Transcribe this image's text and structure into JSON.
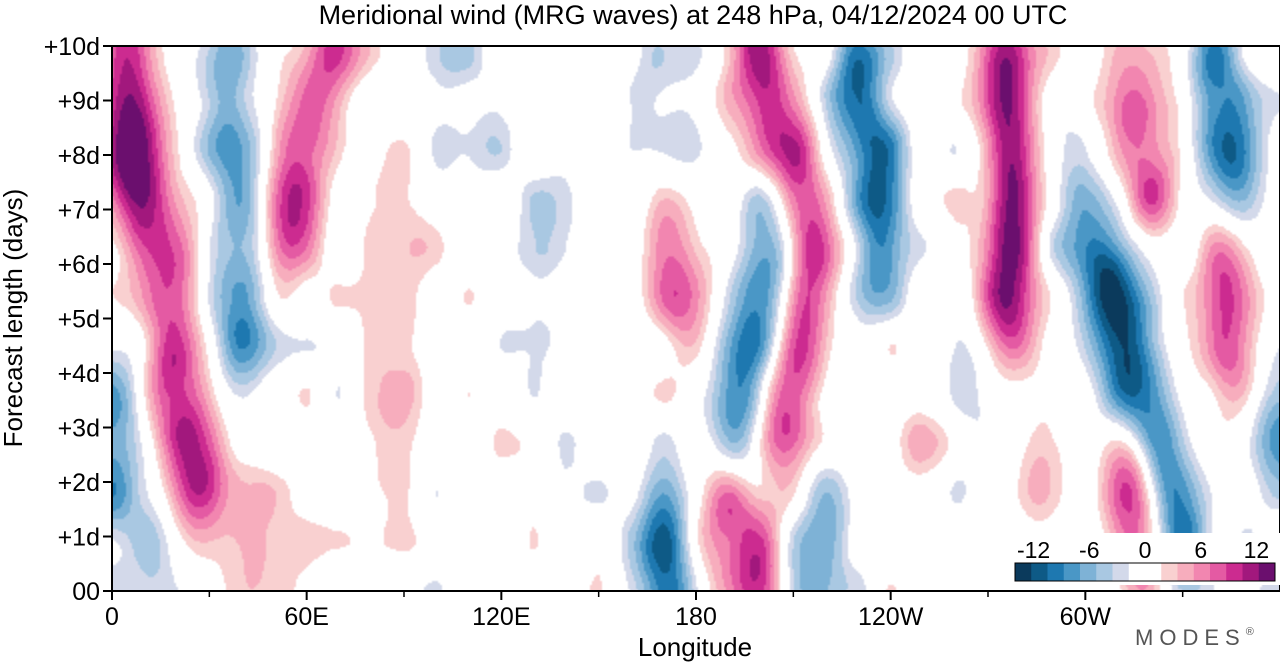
{
  "chart_data": {
    "type": "heatmap",
    "title": "Meridional wind (MRG waves) at  248 hPa,  04/12/2024  00 UTC",
    "xlabel": "Longitude",
    "ylabel": "Forecast length (days)",
    "x_ticks": [
      "0",
      "60E",
      "120E",
      "180",
      "120W",
      "60W"
    ],
    "x_tick_degrees": [
      0,
      60,
      120,
      180,
      240,
      300
    ],
    "xlim": [
      0,
      360
    ],
    "y_ticks": [
      "00",
      "+1d",
      "+2d",
      "+3d",
      "+4d",
      "+5d",
      "+6d",
      "+7d",
      "+8d",
      "+9d",
      "+10d"
    ],
    "ylim": [
      0,
      10
    ],
    "grid": false,
    "colorbar": {
      "labels": [
        "-12",
        "-6",
        "0",
        "6",
        "12"
      ],
      "label_values": [
        -12,
        -6,
        0,
        6,
        12
      ],
      "range": [
        -14,
        14
      ],
      "colors": [
        "#0b3a5c",
        "#0e5a86",
        "#1e78b0",
        "#4a97c6",
        "#7eb2d6",
        "#a9c8e2",
        "#d3d9ea",
        "#ffffff",
        "#ffffff",
        "#f9d0d0",
        "#f7adbd",
        "#f286b0",
        "#e45aa3",
        "#cc2b90",
        "#a2187d",
        "#6b0f6e"
      ]
    },
    "features": [
      {
        "name": "positive",
        "peak": 11,
        "lon": [
          4,
          3,
          3
        ],
        "day": [
          10,
          9,
          8
        ]
      },
      {
        "name": "negative",
        "peak": -7,
        "lon": [
          0,
          0
        ],
        "day": [
          3.2,
          2
        ]
      },
      {
        "name": "positive",
        "peak": 8,
        "lon": [
          10,
          12,
          18
        ],
        "day": [
          8,
          7,
          6
        ]
      },
      {
        "name": "positive",
        "peak": 11,
        "lon": [
          19,
          23,
          26
        ],
        "day": [
          3.8,
          3,
          2.2
        ]
      },
      {
        "name": "negative",
        "peak": -8,
        "lon": [
          34,
          38,
          40,
          40
        ],
        "day": [
          9.5,
          8,
          6.5,
          5
        ]
      },
      {
        "name": "positive",
        "peak": 10,
        "lon": [
          68,
          62,
          58,
          56
        ],
        "day": [
          10,
          9,
          8,
          7
        ]
      },
      {
        "name": "negative",
        "peak": -4,
        "lon": [
          17,
          19
        ],
        "day": [
          0.7,
          0
        ]
      },
      {
        "name": "positive",
        "peak": 3,
        "lon": [
          42,
          46,
          50
        ],
        "day": [
          2,
          1,
          0
        ]
      },
      {
        "name": "positive",
        "peak": 3,
        "lon": [
          88,
          92,
          90,
          85
        ],
        "day": [
          7.5,
          6.5,
          4,
          3
        ]
      },
      {
        "name": "negative",
        "peak": -3,
        "lon": [
          106,
          112
        ],
        "day": [
          9.6,
          8.5
        ]
      },
      {
        "name": "negative",
        "peak": -3,
        "lon": [
          134,
          132
        ],
        "day": [
          6.5,
          5
        ]
      },
      {
        "name": "positive",
        "peak": 8,
        "lon": [
          172,
          176
        ],
        "day": [
          6.5,
          5.5
        ]
      },
      {
        "name": "negative",
        "peak": -4,
        "lon": [
          166,
          172,
          172
        ],
        "day": [
          9.5,
          8.5,
          7.5
        ]
      },
      {
        "name": "negative",
        "peak": -10,
        "lon": [
          170,
          172
        ],
        "day": [
          0.7,
          0
        ]
      },
      {
        "name": "positive",
        "peak": 10,
        "lon": [
          191,
          198
        ],
        "day": [
          1.3,
          0.5
        ]
      },
      {
        "name": "negative",
        "peak": -10,
        "lon": [
          202,
          198,
          193
        ],
        "day": [
          6,
          4.5,
          3
        ]
      },
      {
        "name": "positive",
        "peak": 11,
        "lon": [
          216,
          212,
          207
        ],
        "day": [
          6,
          4.5,
          3.5
        ]
      },
      {
        "name": "positive",
        "peak": 10,
        "lon": [
          198,
          204,
          210
        ],
        "day": [
          10,
          9,
          8
        ]
      },
      {
        "name": "negative",
        "peak": -10,
        "lon": [
          230,
          236,
          236
        ],
        "day": [
          9.2,
          8,
          6.5
        ]
      },
      {
        "name": "negative",
        "peak": -6,
        "lon": [
          220,
          216
        ],
        "day": [
          1.2,
          0.3
        ]
      },
      {
        "name": "positive",
        "peak": 13,
        "lon": [
          276,
          277,
          276
        ],
        "day": [
          9.5,
          7.5,
          5.5
        ]
      },
      {
        "name": "positive",
        "peak": 3,
        "lon": [
          248
        ],
        "day": [
          3
        ]
      },
      {
        "name": "negative",
        "peak": -4,
        "lon": [
          292,
          296
        ],
        "day": [
          8,
          6.8
        ]
      },
      {
        "name": "negative",
        "peak": -14,
        "lon": [
          308,
          314,
          322,
          328
        ],
        "day": [
          5.5,
          4,
          2.5,
          1
        ]
      },
      {
        "name": "positive",
        "peak": 13,
        "lon": [
          316,
          320
        ],
        "day": [
          2,
          0.8
        ]
      },
      {
        "name": "positive",
        "peak": 8,
        "lon": [
          316,
          320
        ],
        "day": [
          8.5,
          7.5
        ]
      },
      {
        "name": "negative",
        "peak": -10,
        "lon": [
          340,
          344
        ],
        "day": [
          9.5,
          8
        ]
      },
      {
        "name": "positive",
        "peak": 9,
        "lon": [
          344,
          346
        ],
        "day": [
          5.5,
          4.5
        ]
      },
      {
        "name": "negative",
        "peak": -7,
        "lon": [
          360
        ],
        "day": [
          3
        ]
      },
      {
        "name": "positive",
        "peak": 5,
        "lon": [
          286
        ],
        "day": [
          2
        ]
      },
      {
        "name": "negative",
        "peak": -3,
        "lon": [
          266,
          268
        ],
        "day": [
          4,
          3
        ]
      }
    ]
  },
  "branding": {
    "text": "MODES",
    "mark": "®"
  }
}
